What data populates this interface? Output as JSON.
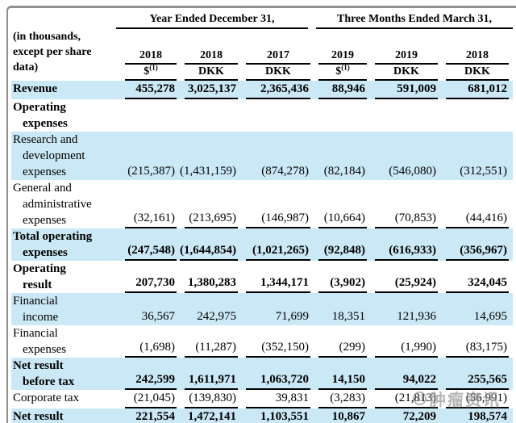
{
  "colors": {
    "shade_blue": "#cbe8f6",
    "line_black": "#000000",
    "frame_gray": "#8f8f8f",
    "watermark_gray": "#8a8a8a"
  },
  "table": {
    "corner_note_lines": [
      "(in thousands,",
      "except per share",
      "data)"
    ],
    "col_groups": [
      {
        "label": "Year Ended December 31,",
        "span": 3
      },
      {
        "label": "Three Months Ended March 31,",
        "span": 3
      }
    ],
    "columns": [
      {
        "year": "2018",
        "unit": "$",
        "unit_sup": "(1)"
      },
      {
        "year": "2018",
        "unit": "DKK",
        "unit_sup": ""
      },
      {
        "year": "2017",
        "unit": "DKK",
        "unit_sup": ""
      },
      {
        "year": "2019",
        "unit": "$",
        "unit_sup": "(1)"
      },
      {
        "year": "2019",
        "unit": "DKK",
        "unit_sup": ""
      },
      {
        "year": "2018",
        "unit": "DKK",
        "unit_sup": ""
      }
    ],
    "rows": [
      {
        "label": "Revenue",
        "lines": [
          "Revenue"
        ],
        "bold": true,
        "shaded": true,
        "underline": "single",
        "values": [
          "455,278",
          "3,025,137",
          "2,365,436",
          "88,946",
          "591,009",
          "681,012"
        ]
      },
      {
        "label": "Operating expenses",
        "lines": [
          "Operating",
          "expenses"
        ],
        "bold": true,
        "shaded": false,
        "underline": "none",
        "values": [
          "",
          "",
          "",
          "",
          "",
          ""
        ]
      },
      {
        "label": "Research and development expenses",
        "lines": [
          "Research and",
          "development",
          "expenses"
        ],
        "bold": false,
        "shaded": true,
        "underline": "none",
        "values": [
          "(215,387)",
          "(1,431,159)",
          "(874,278)",
          "(82,184)",
          "(546,080)",
          "(312,551)"
        ]
      },
      {
        "label": "General and administrative expenses",
        "lines": [
          "General and",
          "administrative",
          "expenses"
        ],
        "bold": false,
        "shaded": false,
        "underline": "single",
        "values": [
          "(32,161)",
          "(213,695)",
          "(146,987)",
          "(10,664)",
          "(70,853)",
          "(44,416)"
        ]
      },
      {
        "label": "Total operating expenses",
        "lines": [
          "Total operating",
          "expenses"
        ],
        "bold": true,
        "shaded": true,
        "underline": "single",
        "values": [
          "(247,548)",
          "(1,644,854)",
          "(1,021,265)",
          "(92,848)",
          "(616,933)",
          "(356,967)"
        ]
      },
      {
        "label": "Operating result",
        "lines": [
          "Operating",
          "result"
        ],
        "bold": true,
        "shaded": false,
        "underline": "single",
        "values": [
          "207,730",
          "1,380,283",
          "1,344,171",
          "(3,902)",
          "(25,924)",
          "324,045"
        ]
      },
      {
        "label": "Financial income",
        "lines": [
          "Financial",
          "income"
        ],
        "bold": false,
        "shaded": true,
        "underline": "none",
        "values": [
          "36,567",
          "242,975",
          "71,699",
          "18,351",
          "121,936",
          "14,695"
        ]
      },
      {
        "label": "Financial expenses",
        "lines": [
          "Financial",
          "expenses"
        ],
        "bold": false,
        "shaded": false,
        "underline": "single",
        "values": [
          "(1,698)",
          "(11,287)",
          "(352,150)",
          "(299)",
          "(1,990)",
          "(83,175)"
        ]
      },
      {
        "label": "Net result before tax",
        "lines": [
          "Net result",
          "before tax"
        ],
        "bold": true,
        "shaded": true,
        "underline": "single",
        "values": [
          "242,599",
          "1,611,971",
          "1,063,720",
          "14,150",
          "94,022",
          "255,565"
        ]
      },
      {
        "label": "Corporate tax",
        "lines": [
          "Corporate tax"
        ],
        "bold": false,
        "shaded": false,
        "underline": "single",
        "values": [
          "(21,045)",
          "(139,830)",
          "39,831",
          "(3,283)",
          "(21,813)",
          "(56,991)"
        ]
      },
      {
        "label": "Net result",
        "lines": [
          "Net result"
        ],
        "bold": true,
        "shaded": true,
        "underline": "double",
        "values": [
          "221,554",
          "1,472,141",
          "1,103,551",
          "10,867",
          "72,209",
          "198,574"
        ]
      }
    ]
  },
  "watermark": {
    "text": "肿瘤资讯",
    "icon": "ring-logo"
  }
}
